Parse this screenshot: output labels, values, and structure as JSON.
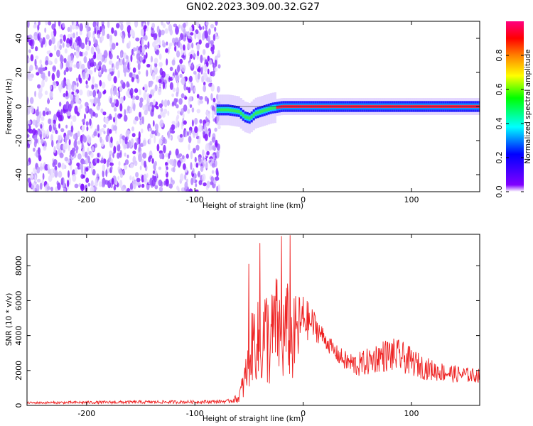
{
  "title": "GN02.2023.309.00.32.G27",
  "colorbar": {
    "label": "Normalized spectral amplitude",
    "ticks": [
      "0.0",
      "0.2",
      "0.4",
      "0.6",
      "0.8"
    ],
    "tick_values": [
      0.0,
      0.2,
      0.4,
      0.6,
      0.8
    ],
    "range": [
      0,
      1
    ]
  },
  "chart_data": [
    {
      "type": "heatmap",
      "title": "GN02.2023.309.00.32.G27",
      "xlabel": "Height of straight line (km)",
      "ylabel": "Frequency (Hz)",
      "xlim": [
        -255,
        163
      ],
      "ylim": [
        -50,
        50
      ],
      "x_ticks": [
        -200,
        -100,
        0,
        100
      ],
      "x_tick_labels": [
        "-200",
        "-100",
        "0",
        "100"
      ],
      "y_ticks": [
        -40,
        -20,
        0,
        20,
        40
      ],
      "y_tick_labels": [
        "-40",
        "-20",
        "0",
        "20",
        "40"
      ],
      "noise_region_x": [
        -255,
        -80
      ],
      "signal_ridge": {
        "x": [
          -80,
          -70,
          -60,
          -55,
          -50,
          -45,
          -40,
          -35,
          -30,
          -20,
          -10,
          0,
          20,
          40,
          60,
          80,
          100,
          120,
          140,
          163
        ],
        "y": [
          -2,
          -2,
          -3,
          -6,
          -7,
          -4,
          -3,
          -2,
          -1,
          0,
          0,
          0,
          0,
          0,
          0,
          0,
          0,
          0,
          0,
          0
        ]
      },
      "colorscale": [
        "#ffffff",
        "#8000ff",
        "#0000ff",
        "#00ffff",
        "#00ff00",
        "#ffff00",
        "#ff8000",
        "#ff0000",
        "#ff0080"
      ]
    },
    {
      "type": "line",
      "xlabel": "Height of straight line (km)",
      "ylabel": "SNR (10 * v/v)",
      "xlim": [
        -255,
        163
      ],
      "ylim": [
        0,
        9800
      ],
      "x_ticks": [
        -200,
        -100,
        0,
        100
      ],
      "x_tick_labels": [
        "-200",
        "-100",
        "0",
        "100"
      ],
      "y_ticks": [
        0,
        2000,
        4000,
        6000,
        8000
      ],
      "y_tick_labels": [
        "0",
        "2000",
        "4000",
        "6000",
        "8000"
      ],
      "color": "#ee2222",
      "envelope": {
        "x": [
          -255,
          -200,
          -150,
          -100,
          -70,
          -60,
          -55,
          -50,
          -45,
          -40,
          -35,
          -30,
          -25,
          -20,
          -15,
          -10,
          -5,
          0,
          5,
          10,
          20,
          30,
          40,
          50,
          60,
          70,
          80,
          90,
          100,
          110,
          120,
          130,
          140,
          150,
          163
        ],
        "mean": [
          150,
          170,
          190,
          200,
          230,
          400,
          1200,
          2500,
          4000,
          3200,
          4200,
          3500,
          4800,
          3600,
          4500,
          3600,
          4300,
          5000,
          4800,
          4600,
          3800,
          3000,
          2500,
          2300,
          2500,
          2800,
          2900,
          2800,
          2500,
          2200,
          2000,
          1900,
          1800,
          1750,
          1700
        ],
        "spread": [
          60,
          80,
          90,
          90,
          100,
          250,
          900,
          1600,
          2400,
          2600,
          2800,
          2900,
          2800,
          2700,
          2700,
          2500,
          2200,
          1400,
          1100,
          900,
          500,
          500,
          600,
          700,
          800,
          900,
          1000,
          950,
          800,
          700,
          600,
          550,
          500,
          450,
          400
        ]
      },
      "peaks": [
        {
          "x": -50,
          "y": 8100
        },
        {
          "x": -40,
          "y": 9300
        },
        {
          "x": -20,
          "y": 9700
        },
        {
          "x": -12,
          "y": 9750
        }
      ]
    }
  ]
}
